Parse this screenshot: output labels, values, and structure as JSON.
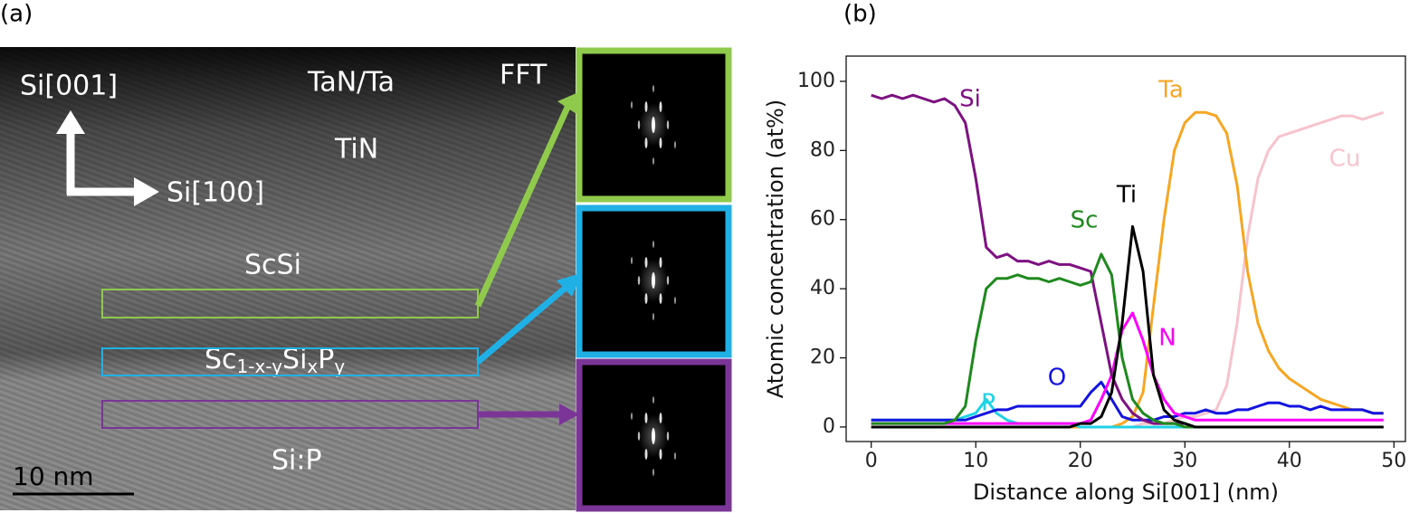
{
  "panel_a": {
    "label": "(a)",
    "orientation_vertical": "Si[001]",
    "orientation_horizontal": "Si[100]",
    "layers": [
      "TaN/Ta",
      "TiN",
      "ScSi",
      "Si:P"
    ],
    "interlayer_parts": [
      "Sc",
      "1-x-y",
      "Si",
      "x",
      "P",
      "y"
    ],
    "fft_label": "FFT",
    "scale_bar": "10 nm"
  },
  "chart_data": {
    "type": "line",
    "panel_label": "(b)",
    "x_label": "Distance along Si[001] (nm)",
    "y_label": "Atomic concentration (at%)",
    "x": [
      0,
      1,
      2,
      3,
      4,
      5,
      6,
      7,
      8,
      9,
      10,
      11,
      12,
      13,
      14,
      15,
      16,
      17,
      18,
      19,
      20,
      21,
      22,
      23,
      24,
      25,
      26,
      27,
      28,
      29,
      30,
      31,
      32,
      33,
      34,
      35,
      36,
      37,
      38,
      39,
      40,
      41,
      42,
      43,
      44,
      45,
      46,
      47,
      48,
      49
    ],
    "xlim": [
      -2.4,
      51.1
    ],
    "xticks": [
      0,
      10,
      20,
      30,
      40,
      50
    ],
    "ylim": [
      -4.2,
      107.3
    ],
    "yticks": [
      0,
      20,
      40,
      60,
      80,
      100
    ],
    "grid": false,
    "series": [
      {
        "name": "Si",
        "color": "#7d1182",
        "values": [
          96,
          95,
          96,
          95,
          96,
          95,
          94,
          95,
          93,
          88,
          72,
          52,
          49,
          50,
          48,
          48,
          47,
          48,
          47,
          47,
          46,
          45,
          30,
          15,
          8,
          4,
          2,
          1,
          1,
          1,
          1,
          0,
          0,
          0,
          0,
          0,
          0,
          0,
          0,
          0,
          0,
          0,
          0,
          0,
          0,
          0,
          0,
          0,
          0,
          0
        ]
      },
      {
        "name": "Sc",
        "color": "#1e8a1e",
        "values": [
          1,
          1,
          1,
          1,
          1,
          1,
          1,
          1,
          2,
          6,
          25,
          40,
          43,
          43,
          44,
          43,
          43,
          42,
          43,
          42,
          41,
          42,
          50,
          44,
          20,
          8,
          4,
          2,
          1,
          1,
          0,
          0,
          0,
          0,
          0,
          0,
          0,
          0,
          0,
          0,
          0,
          0,
          0,
          0,
          0,
          0,
          0,
          0,
          0,
          0
        ]
      },
      {
        "name": "Ti",
        "color": "#000000",
        "values": [
          0,
          0,
          0,
          0,
          0,
          0,
          0,
          0,
          0,
          0,
          0,
          0,
          0,
          0,
          0,
          0,
          0,
          0,
          0,
          0,
          1,
          1,
          3,
          10,
          30,
          58,
          45,
          15,
          5,
          2,
          1,
          0,
          0,
          0,
          0,
          0,
          0,
          0,
          0,
          0,
          0,
          0,
          0,
          0,
          0,
          0,
          0,
          0,
          0,
          0
        ]
      },
      {
        "name": "Ta",
        "color": "#f5a623",
        "values": [
          0,
          0,
          0,
          0,
          0,
          0,
          0,
          0,
          0,
          0,
          0,
          0,
          0,
          0,
          0,
          0,
          0,
          0,
          0,
          0,
          0,
          0,
          0,
          0,
          1,
          3,
          10,
          35,
          60,
          80,
          88,
          91,
          91,
          90,
          85,
          70,
          45,
          30,
          22,
          17,
          14,
          12,
          10,
          8,
          7,
          6,
          5,
          5,
          4,
          4
        ]
      },
      {
        "name": "Cu",
        "color": "#f7c3cc",
        "values": [
          0,
          0,
          0,
          0,
          0,
          0,
          0,
          0,
          0,
          0,
          0,
          0,
          0,
          0,
          0,
          0,
          0,
          0,
          0,
          0,
          0,
          0,
          0,
          0,
          0,
          0,
          1,
          1,
          1,
          2,
          3,
          3,
          4,
          5,
          12,
          30,
          55,
          72,
          80,
          84,
          85,
          86,
          87,
          88,
          89,
          90,
          90,
          89,
          90,
          91
        ]
      },
      {
        "name": "P",
        "color": "#1fd3e6",
        "values": [
          2,
          2,
          2,
          2,
          2,
          2,
          2,
          2,
          2,
          3,
          4,
          8,
          4,
          2,
          1,
          1,
          1,
          1,
          1,
          1,
          0,
          0,
          0,
          0,
          0,
          0,
          0,
          0,
          0,
          0,
          0,
          0,
          0,
          0,
          0,
          0,
          0,
          0,
          0,
          0,
          0,
          0,
          0,
          0,
          0,
          0,
          0,
          0,
          0,
          0
        ]
      },
      {
        "name": "O",
        "color": "#1414e0",
        "values": [
          2,
          2,
          2,
          2,
          2,
          2,
          2,
          2,
          2,
          2,
          3,
          4,
          5,
          5,
          6,
          6,
          6,
          6,
          6,
          6,
          6,
          10,
          13,
          8,
          3,
          2,
          2,
          2,
          3,
          3,
          4,
          4,
          5,
          4,
          4,
          5,
          5,
          6,
          7,
          7,
          6,
          6,
          5,
          6,
          5,
          5,
          5,
          5,
          4,
          4
        ]
      },
      {
        "name": "N",
        "color": "#ff00ff",
        "values": [
          1,
          1,
          1,
          1,
          1,
          1,
          1,
          1,
          1,
          1,
          1,
          1,
          1,
          1,
          1,
          1,
          1,
          1,
          1,
          1,
          1,
          2,
          8,
          15,
          28,
          33,
          25,
          15,
          8,
          4,
          3,
          2,
          2,
          2,
          2,
          2,
          2,
          2,
          2,
          2,
          2,
          2,
          2,
          2,
          2,
          2,
          2,
          2,
          2,
          2
        ]
      }
    ]
  }
}
